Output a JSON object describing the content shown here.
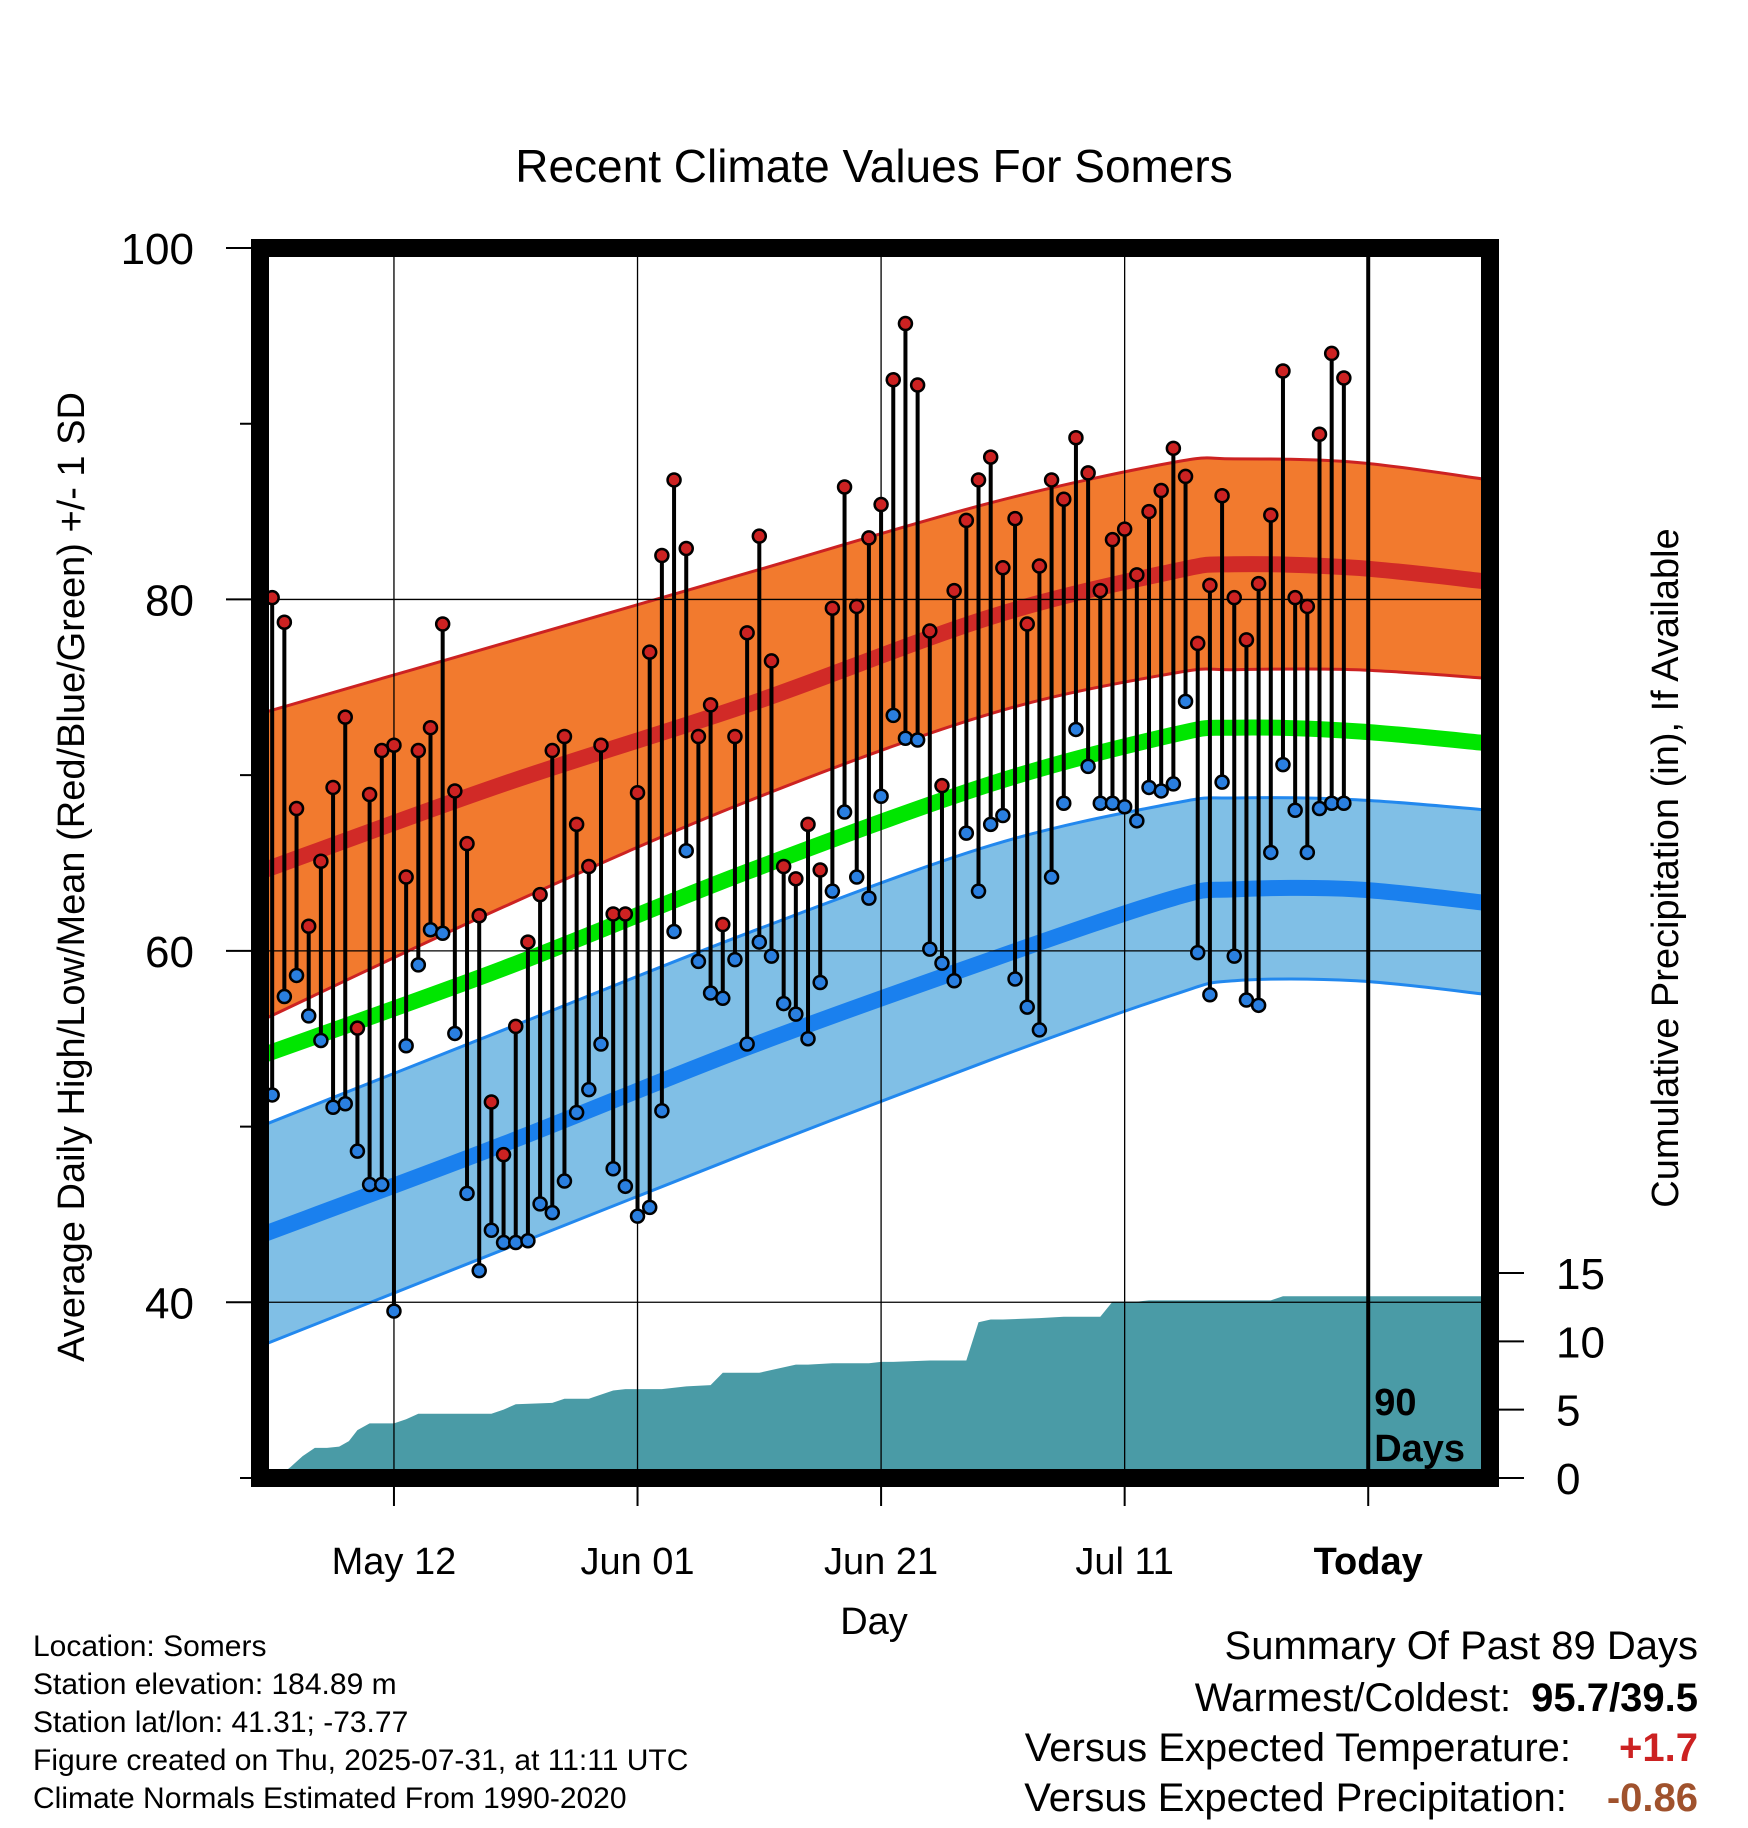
{
  "chart_data": {
    "type": "line",
    "title": "Recent Climate Values For Somers",
    "xlabel": "Day",
    "ylabel": "Average Daily High/Low/Mean (Red/Blue/Green) +/- 1 SD",
    "y2label": "Cumulative Precipitation (in), If Available",
    "ylim": [
      30,
      100
    ],
    "y_ticks": [
      "40",
      "60",
      "80",
      "100"
    ],
    "y2lim": [
      0,
      90
    ],
    "y2_ticks": [
      "0",
      "5",
      "10",
      "15"
    ],
    "x_ticks": [
      "May 12",
      "Jun 01",
      "Jun 21",
      "Jul 11",
      "Today"
    ],
    "x_tick_days": [
      11,
      31,
      51,
      71,
      91
    ],
    "today_day": 91,
    "today_marker_label": [
      "90",
      "Days"
    ],
    "normals": {
      "day": [
        0,
        20,
        40,
        60,
        75,
        80,
        90,
        101
      ],
      "high_mean": [
        64.5,
        69.5,
        74,
        79,
        81.6,
        82,
        81.8,
        81
      ],
      "high_sd_upper": [
        73.5,
        77.5,
        81.5,
        85.5,
        87.8,
        88,
        87.8,
        86.8
      ],
      "high_sd_lower": [
        56,
        62.5,
        68.5,
        73.5,
        75.8,
        76,
        76,
        75.5
      ],
      "avg_mean": [
        54,
        59,
        64.5,
        69.5,
        72.3,
        72.7,
        72.5,
        71.8
      ],
      "low_mean": [
        43.8,
        49,
        54.5,
        59.5,
        63,
        63.5,
        63.5,
        62.7
      ],
      "low_sd_upper": [
        50,
        55.5,
        61,
        66,
        68.4,
        68.7,
        68.6,
        68
      ],
      "low_sd_lower": [
        37.5,
        43,
        48.5,
        53.8,
        57.5,
        58.3,
        58.3,
        57.5
      ]
    },
    "daily": {
      "day": [
        1,
        2,
        3,
        4,
        5,
        6,
        7,
        8,
        9,
        10,
        11,
        12,
        13,
        14,
        15,
        16,
        17,
        18,
        19,
        20,
        21,
        22,
        23,
        24,
        25,
        26,
        27,
        28,
        29,
        30,
        31,
        32,
        33,
        34,
        35,
        36,
        37,
        38,
        39,
        40,
        41,
        42,
        43,
        44,
        45,
        46,
        47,
        48,
        49,
        50,
        51,
        52,
        53,
        54,
        55,
        56,
        57,
        58,
        59,
        60,
        61,
        62,
        63,
        64,
        65,
        66,
        67,
        68,
        69,
        70,
        71,
        72,
        73,
        74,
        75,
        76,
        77,
        78,
        79,
        80,
        81,
        82,
        83,
        84,
        85,
        86,
        87,
        88,
        89
      ],
      "high": [
        80.1,
        78.7,
        68.1,
        61.4,
        65.1,
        69.3,
        73.3,
        55.6,
        68.9,
        71.4,
        71.7,
        64.2,
        71.4,
        72.7,
        78.6,
        69.1,
        66.1,
        62.0,
        51.4,
        48.4,
        55.7,
        60.5,
        63.2,
        71.4,
        72.2,
        67.2,
        64.8,
        71.7,
        62.1,
        62.1,
        69.0,
        77.0,
        82.5,
        86.8,
        82.9,
        72.2,
        74.0,
        61.5,
        72.2,
        78.1,
        83.6,
        76.5,
        64.8,
        64.1,
        67.2,
        64.6,
        79.5,
        86.4,
        79.6,
        83.5,
        85.4,
        92.5,
        95.7,
        92.2,
        78.2,
        69.4,
        80.5,
        84.5,
        86.8,
        88.1,
        81.8,
        84.6,
        78.6,
        81.9,
        86.8,
        85.7,
        89.2,
        87.2,
        80.5,
        83.4,
        84.0,
        81.4,
        85.0,
        86.2,
        88.6,
        87.0,
        77.5,
        80.8,
        85.9,
        80.1,
        77.7,
        80.9,
        84.8,
        93.0,
        80.1,
        79.6,
        89.4,
        94.0,
        92.6
      ],
      "low": [
        51.8,
        57.4,
        58.6,
        56.3,
        54.9,
        51.1,
        51.3,
        48.6,
        46.7,
        46.7,
        39.5,
        54.6,
        59.2,
        61.2,
        61.0,
        55.3,
        46.2,
        41.8,
        44.1,
        43.4,
        43.4,
        43.5,
        45.6,
        45.1,
        46.9,
        50.8,
        52.1,
        54.7,
        47.6,
        46.6,
        44.9,
        45.4,
        50.9,
        61.1,
        65.7,
        59.4,
        57.6,
        57.3,
        59.5,
        54.7,
        60.5,
        59.7,
        57.0,
        56.4,
        55.0,
        58.2,
        63.4,
        67.9,
        64.2,
        63.0,
        68.8,
        73.4,
        72.1,
        72.0,
        60.1,
        59.3,
        58.3,
        66.7,
        63.4,
        67.2,
        67.7,
        58.4,
        56.8,
        55.5,
        64.2,
        68.4,
        72.6,
        70.5,
        68.4,
        68.4,
        68.2,
        67.4,
        69.3,
        69.1,
        69.5,
        74.2,
        59.9,
        57.5,
        69.6,
        59.7,
        57.2,
        56.9,
        65.6,
        70.6,
        68.0,
        65.6,
        68.1,
        68.4,
        68.4
      ]
    },
    "precip_cumulative": {
      "day": [
        1,
        1.8,
        2.5,
        3.5,
        4.5,
        5.5,
        6.5,
        7.3,
        8,
        9,
        11,
        12,
        13,
        15,
        19,
        20,
        21,
        24,
        25,
        27,
        29,
        30,
        31,
        33,
        35,
        37,
        38,
        40,
        41,
        42,
        44,
        45,
        47,
        49,
        50,
        51,
        52,
        55,
        58,
        59,
        60,
        61,
        64,
        66,
        69,
        70,
        72,
        73,
        75,
        83,
        84,
        85,
        89,
        101
      ],
      "inches": [
        0,
        0.3,
        0.8,
        1.6,
        2.2,
        2.2,
        2.3,
        2.7,
        3.5,
        4.0,
        4.0,
        4.3,
        4.7,
        4.7,
        4.7,
        5.0,
        5.4,
        5.5,
        5.8,
        5.8,
        6.4,
        6.5,
        6.5,
        6.5,
        6.7,
        6.8,
        7.7,
        7.7,
        7.7,
        7.9,
        8.3,
        8.3,
        8.4,
        8.4,
        8.4,
        8.5,
        8.5,
        8.6,
        8.6,
        11.4,
        11.6,
        11.6,
        11.7,
        11.8,
        11.8,
        12.9,
        12.9,
        13.0,
        13.0,
        13.0,
        13.3,
        13.3,
        13.3,
        13.3
      ]
    }
  },
  "location_info": {
    "location": "Location: Somers",
    "elevation": "Station elevation: 184.89 m",
    "latlon": "Station lat/lon: 41.31; -73.77",
    "created": "Figure created on Thu, 2025-07-31, at 11:11 UTC",
    "normals_source": "Climate Normals Estimated From 1990-2020"
  },
  "summary": {
    "title": "Summary Of Past 89 Days",
    "warmest_coldest_label": "Warmest/Coldest:",
    "warmest_coldest_value": "95.7/39.5",
    "temp_label": "Versus Expected Temperature:",
    "temp_value": "+1.7",
    "precip_label": "Versus Expected Precipitation:",
    "precip_value": "-0.86"
  },
  "colors": {
    "high_band": "#f27a2e",
    "high_mean": "#d12a27",
    "high_band_edge": "#cc2222",
    "avg_mean": "#00e600",
    "low_band": "#80bfe6",
    "low_mean": "#1a80ee",
    "low_band_edge": "#2288ee",
    "precip": "#4a9ba6",
    "high_point": "#cc2222",
    "low_point": "#2a7fe0",
    "temp_anomaly": "#cc2222",
    "precip_anomaly": "#a0522d"
  }
}
